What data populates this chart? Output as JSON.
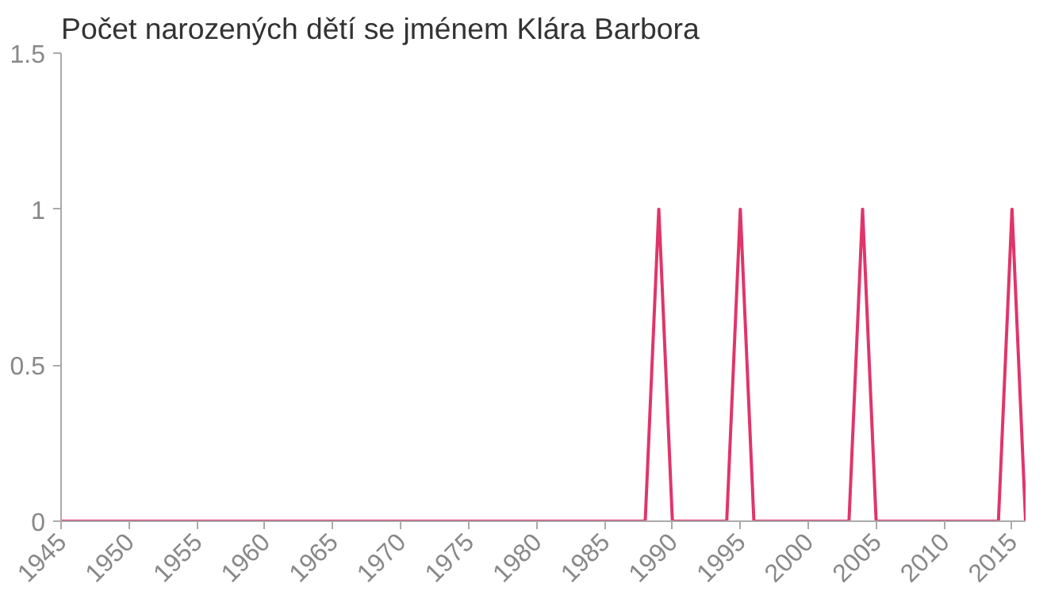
{
  "chart_data": {
    "type": "line",
    "title": "Počet narozených dětí se jménem Klára Barbora",
    "x": [
      1945,
      1946,
      1947,
      1948,
      1949,
      1950,
      1951,
      1952,
      1953,
      1954,
      1955,
      1956,
      1957,
      1958,
      1959,
      1960,
      1961,
      1962,
      1963,
      1964,
      1965,
      1966,
      1967,
      1968,
      1969,
      1970,
      1971,
      1972,
      1973,
      1974,
      1975,
      1976,
      1977,
      1978,
      1979,
      1980,
      1981,
      1982,
      1983,
      1984,
      1985,
      1986,
      1987,
      1988,
      1989,
      1990,
      1991,
      1992,
      1993,
      1994,
      1995,
      1996,
      1997,
      1998,
      1999,
      2000,
      2001,
      2002,
      2003,
      2004,
      2005,
      2006,
      2007,
      2008,
      2009,
      2010,
      2011,
      2012,
      2013,
      2014,
      2015,
      2016
    ],
    "series": [
      {
        "color": "#e0356a",
        "values": [
          0,
          0,
          0,
          0,
          0,
          0,
          0,
          0,
          0,
          0,
          0,
          0,
          0,
          0,
          0,
          0,
          0,
          0,
          0,
          0,
          0,
          0,
          0,
          0,
          0,
          0,
          0,
          0,
          0,
          0,
          0,
          0,
          0,
          0,
          0,
          0,
          0,
          0,
          0,
          0,
          0,
          0,
          0,
          0,
          1,
          0,
          0,
          0,
          0,
          0,
          1,
          0,
          0,
          0,
          0,
          0,
          0,
          0,
          0,
          1,
          0,
          0,
          0,
          0,
          0,
          0,
          0,
          0,
          0,
          0,
          1,
          0
        ]
      }
    ],
    "xlim": [
      1945,
      2016
    ],
    "xticks": [
      1945,
      1950,
      1955,
      1960,
      1965,
      1970,
      1975,
      1980,
      1985,
      1990,
      1995,
      2000,
      2005,
      2010,
      2015
    ],
    "ylim": [
      0,
      1.5
    ],
    "yticks": [
      0,
      0.5,
      1,
      1.5
    ],
    "grid": false,
    "marker": "none",
    "line_style": "solid"
  }
}
